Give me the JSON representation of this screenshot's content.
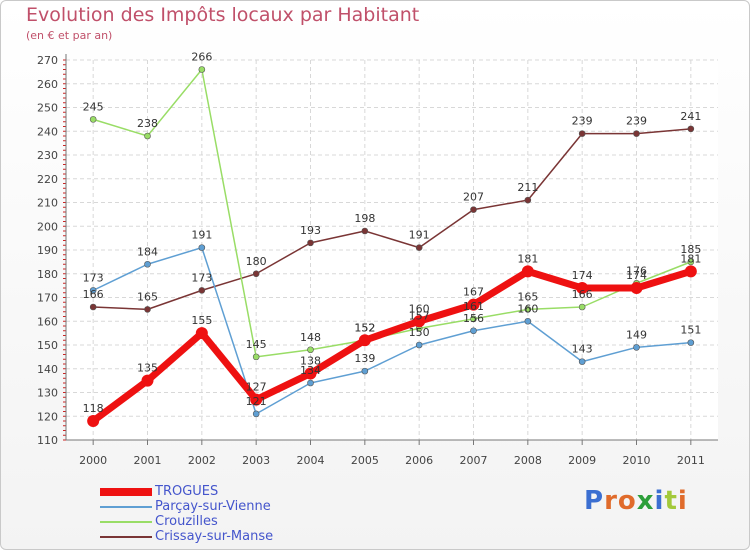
{
  "title": "Evolution des Impôts locaux par Habitant",
  "subtitle": "(en € et par an)",
  "brand": "Proxiti",
  "chart_data": {
    "type": "line",
    "title": "Evolution des Impôts locaux par Habitant",
    "subtitle": "(en € et par an)",
    "xlabel": "",
    "ylabel": "",
    "ylim": [
      110,
      270
    ],
    "yticks": [
      110,
      120,
      130,
      140,
      150,
      160,
      170,
      180,
      190,
      200,
      210,
      220,
      230,
      240,
      250,
      260,
      270
    ],
    "categories": [
      "2000",
      "2001",
      "2002",
      "2003",
      "2004",
      "2005",
      "2006",
      "2007",
      "2008",
      "2009",
      "2010",
      "2011"
    ],
    "grid": true,
    "legend": "bottom-left",
    "series": [
      {
        "name": "TROGUES",
        "color": "#ee1111",
        "values": [
          118,
          135,
          155,
          127,
          138,
          152,
          160,
          167,
          181,
          174,
          174,
          181
        ]
      },
      {
        "name": "Parçay-sur-Vienne",
        "color": "#5f9fd3",
        "values": [
          173,
          184,
          191,
          121,
          134,
          139,
          150,
          156,
          160,
          143,
          149,
          151
        ]
      },
      {
        "name": "Crouzilles",
        "color": "#99dd66",
        "values": [
          245,
          238,
          266,
          145,
          148,
          152,
          157,
          161,
          165,
          166,
          176,
          185
        ]
      },
      {
        "name": "Crissay-sur-Manse",
        "color": "#7a3535",
        "values": [
          166,
          165,
          173,
          180,
          193,
          198,
          191,
          207,
          211,
          239,
          239,
          241
        ]
      }
    ]
  }
}
